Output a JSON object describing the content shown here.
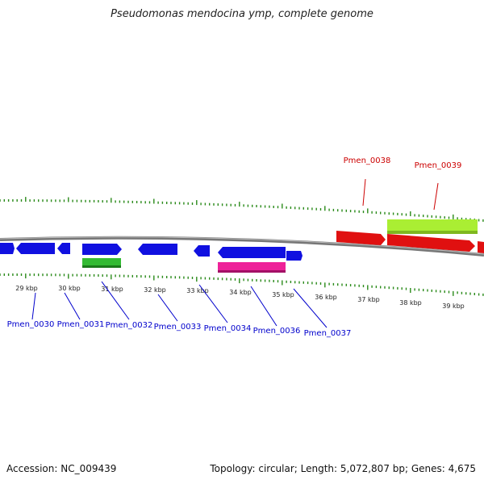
{
  "title": "Pseudomonas mendocina ymp, complete genome",
  "colors": {
    "tick": "#2a8a1a",
    "backbone": "#7a7a7a",
    "forward_gene": "#1010e0",
    "reverse_gene": "#e01010",
    "rna_green": "#33bb33",
    "rna_lime": "#aaee33",
    "pink": "#ee2299",
    "label_blue": "#0000cc",
    "label_red": "#cc0000"
  },
  "kbp_labels": [
    "29 kbp",
    "30 kbp",
    "31 kbp",
    "32 kbp",
    "33 kbp",
    "34 kbp",
    "35 kbp",
    "36 kbp",
    "37 kbp",
    "38 kbp",
    "39 kbp"
  ],
  "gene_labels": {
    "Pmen_0030": "Pmen_0030",
    "Pmen_0031": "Pmen_0031",
    "Pmen_0032": "Pmen_0032",
    "Pmen_0033": "Pmen_0033",
    "Pmen_0034": "Pmen_0034",
    "Pmen_0036": "Pmen_0036",
    "Pmen_0037": "Pmen_0037",
    "Pmen_0038": "Pmen_0038",
    "Pmen_0039": "Pmen_0039"
  },
  "footer": {
    "accession": "Accession: NC_009439",
    "summary": "Topology: circular; Length: 5,072,807 bp; Genes: 4,675"
  }
}
